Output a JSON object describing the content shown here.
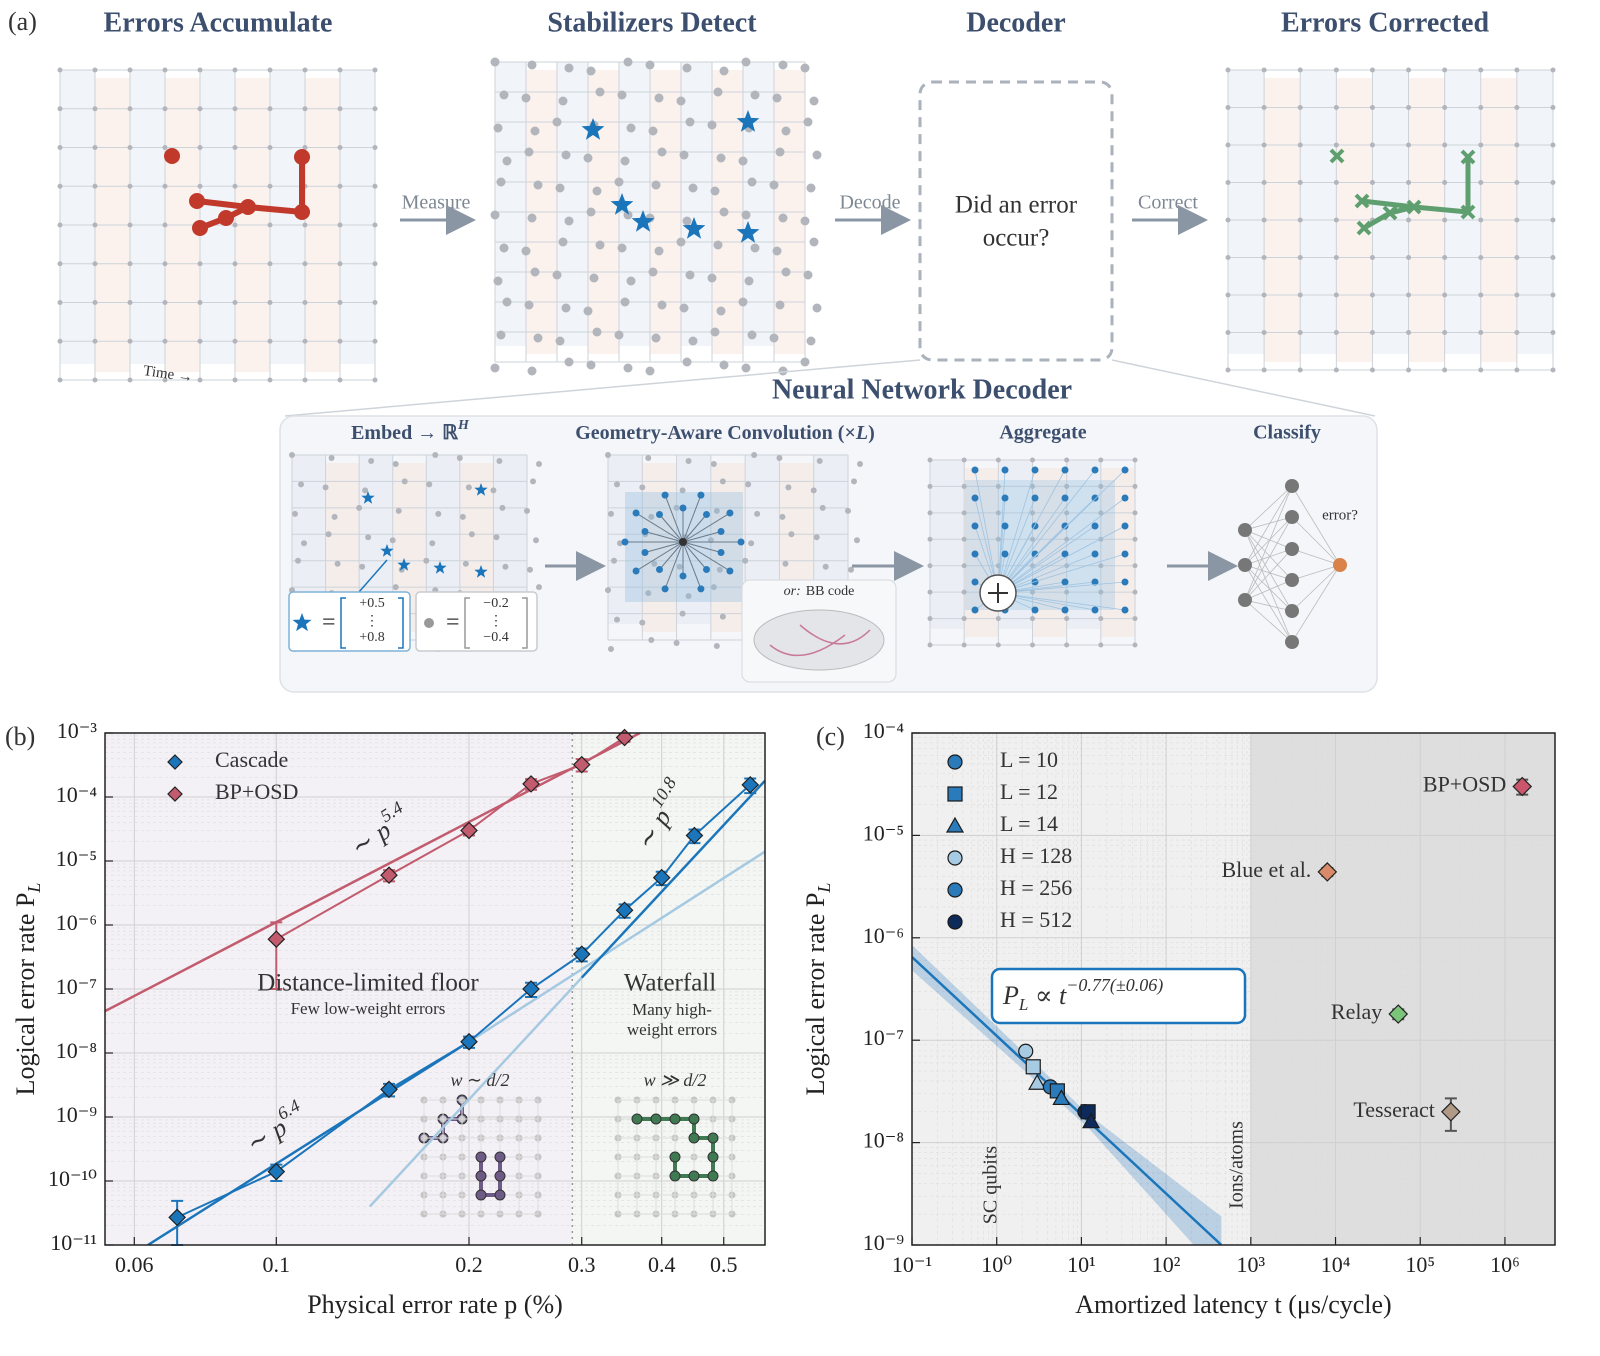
{
  "panel_a": {
    "label": "(a)",
    "stages": [
      "Errors Accumulate",
      "Stabilizers Detect",
      "Decoder",
      "Errors Corrected"
    ],
    "arrows": [
      "Measure",
      "Decode",
      "Correct"
    ],
    "decoder_question": [
      "Did an error",
      "occur?"
    ],
    "time_label": "Time →",
    "nn": {
      "title": "Neural Network Decoder",
      "embed": "Embed → ℝ",
      "embed_superscript": "H",
      "conv": "Geometry-Aware Convolution (×",
      "conv_var": "L",
      "conv_end": ")",
      "aggregate": "Aggregate",
      "classify": "Classify",
      "equals": "=",
      "star_vector": [
        "+0.5",
        "⋮",
        "+0.8"
      ],
      "dot_vector": [
        "−0.2",
        "⋮",
        "−0.4"
      ],
      "bb_prefix": "or:",
      "bb_code": "BB code",
      "error_q": "error?"
    }
  },
  "chart_data": [
    {
      "type": "line",
      "panel_label": "(b)",
      "xlabel": "Physical error rate p (%)",
      "ylabel": "Logical error rate P",
      "ylabel_subscript": "L",
      "log_x": true,
      "log_y": true,
      "grid": true,
      "xlim": [
        0.054,
        0.58
      ],
      "ylim": [
        1e-11,
        0.001
      ],
      "xticks": [
        0.06,
        0.1,
        0.2,
        0.3,
        0.4,
        0.5
      ],
      "yticks": [
        {
          "value": 1e-11,
          "label": "10⁻¹¹"
        },
        {
          "value": 1e-10,
          "label": "10⁻¹⁰"
        },
        {
          "value": 1e-09,
          "label": "10⁻⁹"
        },
        {
          "value": 1e-08,
          "label": "10⁻⁸"
        },
        {
          "value": 1e-07,
          "label": "10⁻⁷"
        },
        {
          "value": 1e-06,
          "label": "10⁻⁶"
        },
        {
          "value": 1e-05,
          "label": "10⁻⁵"
        },
        {
          "value": 0.0001,
          "label": "10⁻⁴"
        },
        {
          "value": 0.001,
          "label": "10⁻³"
        }
      ],
      "legend": "upper left",
      "series": [
        {
          "name": "Cascade",
          "color": "#1b75bb",
          "x": [
            0.07,
            0.1,
            0.15,
            0.2,
            0.25,
            0.3,
            0.35,
            0.4,
            0.45,
            0.55
          ],
          "values": [
            2.7e-11,
            1.4e-10,
            2.7e-09,
            1.5e-08,
            1e-07,
            3.5e-07,
            1.7e-06,
            5.5e-06,
            2.5e-05,
            0.000155
          ],
          "errors": [
            2.2e-11,
            4e-11,
            6e-10,
            3e-09,
            2.5e-08,
            8e-08,
            4e-07,
            1.3e-06,
            6e-06,
            4e-05
          ]
        },
        {
          "name": "BP+OSD",
          "color": "#c25b6e",
          "x": [
            0.1,
            0.15,
            0.2,
            0.25,
            0.3,
            0.35
          ],
          "values": [
            6e-07,
            6e-06,
            3e-05,
            0.00016,
            0.00032,
            0.00085
          ],
          "errors": [
            5e-07,
            1.2e-06,
            5e-06,
            3e-05,
            7e-05,
            0.00012
          ]
        }
      ],
      "fits": [
        {
          "x": [
            0.054,
            0.37
          ],
          "values": [
            4.5e-08,
            0.001
          ],
          "color": "#c25b6e",
          "label": "∼ p",
          "exponent": "5.4"
        },
        {
          "x": [
            0.063,
            0.2
          ],
          "values": [
            1e-11,
            1.5e-08
          ],
          "color": "#1b75bb",
          "label": "∼ p",
          "exponent": "6.4"
        },
        {
          "x": [
            0.2,
            0.58
          ],
          "values": [
            1.5e-08,
            1.4e-05
          ],
          "color": "#a6c9e2"
        },
        {
          "x": [
            0.14,
            0.3
          ],
          "values": [
            4e-11,
            1.5e-07
          ],
          "color": "#a6c9e2"
        },
        {
          "x": [
            0.3,
            0.58
          ],
          "values": [
            1.5e-07,
            0.00018
          ],
          "color": "#1b75bb",
          "label": "∼ p",
          "exponent": "10.8"
        }
      ],
      "threshold": 0.29,
      "floor_title": "Distance-limited floor",
      "floor_note": "Few low-weight errors",
      "waterfall_title": "Waterfall",
      "waterfall_note": [
        "Many high-",
        "weight errors"
      ],
      "inset_left": "w ∼ d/2",
      "inset_right": "w ≫ d/2"
    },
    {
      "type": "scatter",
      "panel_label": "(c)",
      "xlabel": "Amortized latency t (μs/cycle)",
      "ylabel": "Logical error rate P",
      "ylabel_subscript": "L",
      "log_x": true,
      "log_y": true,
      "grid": true,
      "xlim": [
        0.1,
        3900000.0
      ],
      "ylim": [
        1e-09,
        0.0001
      ],
      "xticks": [
        {
          "value": 0.1,
          "label": "10⁻¹"
        },
        {
          "value": 1,
          "label": "10⁰"
        },
        {
          "value": 10,
          "label": "10¹"
        },
        {
          "value": 100,
          "label": "10²"
        },
        {
          "value": 1000,
          "label": "10³"
        },
        {
          "value": 10000,
          "label": "10⁴"
        },
        {
          "value": 100000,
          "label": "10⁵"
        },
        {
          "value": 1000000,
          "label": "10⁶"
        }
      ],
      "yticks": [
        {
          "value": 1e-09,
          "label": "10⁻⁹"
        },
        {
          "value": 1e-08,
          "label": "10⁻⁸"
        },
        {
          "value": 1e-07,
          "label": "10⁻⁷"
        },
        {
          "value": 1e-06,
          "label": "10⁻⁶"
        },
        {
          "value": 1e-05,
          "label": "10⁻⁵"
        },
        {
          "value": 0.0001,
          "label": "10⁻⁴"
        }
      ],
      "legend_entries": [
        "L = 10",
        "L = 12",
        "L = 14",
        "H = 128",
        "H = 256",
        "H = 512"
      ],
      "shapes": {
        "10": "circle",
        "12": "square",
        "14": "triangle"
      },
      "shades": {
        "128": "#a8cbe4",
        "256": "#2b7bba",
        "512": "#0e2a5a"
      },
      "cascade": {
        "x": [
          2.2,
          2.7,
          3.0,
          4.3,
          5.2,
          5.8,
          11,
          12,
          13
        ],
        "values": [
          7.8e-08,
          5.5e-08,
          3.8e-08,
          3.5e-08,
          3.2e-08,
          2.7e-08,
          2e-08,
          2e-08,
          1.6e-08
        ],
        "L": [
          10,
          12,
          14,
          10,
          12,
          14,
          10,
          12,
          14
        ],
        "H": [
          128,
          128,
          128,
          256,
          256,
          256,
          512,
          512,
          512
        ]
      },
      "decoders": [
        {
          "name": "BP+OSD",
          "x": 1600000,
          "value": 3e-05,
          "error": 5e-06,
          "color": "#c9566b"
        },
        {
          "name": "Blue et al.",
          "x": 8000,
          "value": 4.4e-06,
          "error": 4e-07,
          "color": "#d98a6a"
        },
        {
          "name": "Relay",
          "x": 55000,
          "value": 1.8e-07,
          "error": 2e-08,
          "color": "#7cc47a"
        },
        {
          "name": "Tesseract",
          "x": 230000,
          "value": 2e-08,
          "error": 7e-09,
          "color": "#b09a86"
        }
      ],
      "fit": {
        "x": [
          0.1,
          450
        ],
        "values": [
          6.5e-07,
          1e-09
        ],
        "color": "#1b75bb",
        "band_x": [
          0.1,
          12,
          450
        ],
        "band_low": [
          4.8e-07,
          1.4e-08,
          5e-10
        ],
        "band_high": [
          8.5e-07,
          1.9e-08,
          1.9e-09
        ],
        "label_base": "P",
        "label_sub": "L",
        "label_mid": " ∝ t",
        "label_exp": "−0.77(±0.06)"
      },
      "shade_from": 1000,
      "sc_label": "SC qubits",
      "ions_label": "Ions/atoms"
    }
  ]
}
